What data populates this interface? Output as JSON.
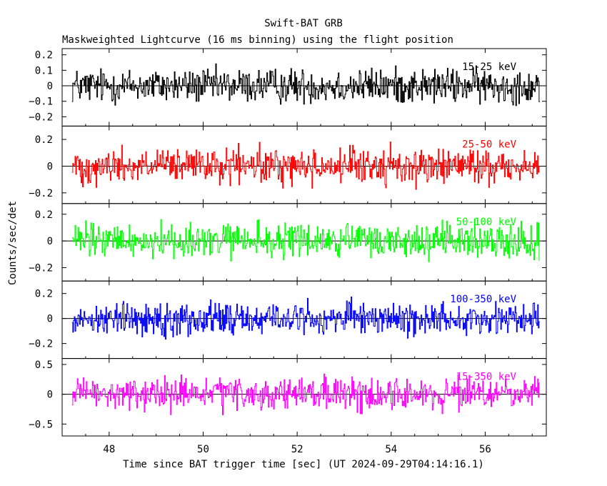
{
  "chart_data": {
    "type": "line",
    "title": "Swift-BAT GRB",
    "subtitle": "Maskweighted Lightcurve (16 ms binning) using the flight position",
    "xlabel": "Time since BAT trigger time [sec] (UT 2024-09-29T04:14:16.1)",
    "ylabel": "Counts/sec/det",
    "xlim": [
      47.0,
      57.3
    ],
    "x_ticks": [
      48,
      50,
      52,
      54,
      56
    ],
    "x_tick_labels": [
      "48",
      "50",
      "52",
      "54",
      "56"
    ],
    "bin_width_sec": 0.016,
    "grid": false,
    "panels": [
      {
        "name": "15-25 keV",
        "color": "#000000",
        "ylim": [
          -0.26,
          0.24
        ],
        "y_ticks": [
          -0.2,
          -0.1,
          0,
          0.1,
          0.2
        ],
        "y_tick_labels": [
          "-0.2",
          "-0.1",
          "0",
          "0.1",
          "0.2"
        ],
        "noise_amplitude": 0.085
      },
      {
        "name": "25-50 keV",
        "color": "#ff0000",
        "ylim": [
          -0.28,
          0.3
        ],
        "y_ticks": [
          -0.2,
          0,
          0.2
        ],
        "y_tick_labels": [
          "-0.2",
          "0",
          "0.2"
        ],
        "noise_amplitude": 0.1
      },
      {
        "name": "50-100 keV",
        "color": "#00ff00",
        "ylim": [
          -0.3,
          0.28
        ],
        "y_ticks": [
          -0.2,
          0,
          0.2
        ],
        "y_tick_labels": [
          "-0.2",
          "0",
          "0.2"
        ],
        "noise_amplitude": 0.1
      },
      {
        "name": "100-350 keV",
        "color": "#0000ff",
        "ylim": [
          -0.32,
          0.3
        ],
        "y_ticks": [
          -0.2,
          0,
          0.2
        ],
        "y_tick_labels": [
          "-0.2",
          "0",
          "0.2"
        ],
        "noise_amplitude": 0.1
      },
      {
        "name": "15-350 keV",
        "color": "#ff00ff",
        "ylim": [
          -0.7,
          0.6
        ],
        "y_ticks": [
          -0.5,
          0,
          0.5
        ],
        "y_tick_labels": [
          "-0.5",
          "0",
          "0.5"
        ],
        "noise_amplitude": 0.2
      }
    ]
  }
}
